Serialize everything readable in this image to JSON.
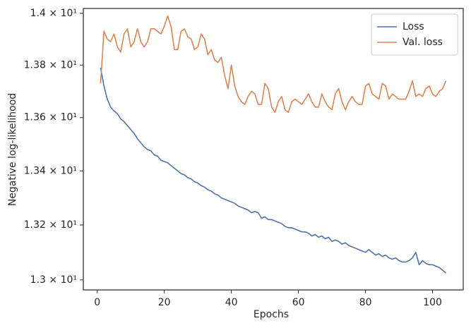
{
  "chart_data": {
    "type": "line",
    "xlabel": "Epochs",
    "ylabel": "Negative log-likelihood",
    "x": [
      1,
      2,
      3,
      4,
      5,
      6,
      7,
      8,
      9,
      10,
      11,
      12,
      13,
      14,
      15,
      16,
      17,
      18,
      19,
      20,
      21,
      22,
      23,
      24,
      25,
      26,
      27,
      28,
      29,
      30,
      31,
      32,
      33,
      34,
      35,
      36,
      37,
      38,
      39,
      40,
      41,
      42,
      43,
      44,
      45,
      46,
      47,
      48,
      49,
      50,
      51,
      52,
      53,
      54,
      55,
      56,
      57,
      58,
      59,
      60,
      61,
      62,
      63,
      64,
      65,
      66,
      67,
      68,
      69,
      70,
      71,
      72,
      73,
      74,
      75,
      76,
      77,
      78,
      79,
      80,
      81,
      82,
      83,
      84,
      85,
      86,
      87,
      88,
      89,
      90,
      91,
      92,
      93,
      94,
      95,
      96,
      97,
      98,
      99,
      100,
      101,
      102,
      103,
      104
    ],
    "series": [
      {
        "name": "Loss",
        "color": "#4c72b0",
        "values": [
          13.79,
          13.72,
          13.67,
          13.64,
          13.625,
          13.615,
          13.595,
          13.585,
          13.57,
          13.555,
          13.54,
          13.52,
          13.505,
          13.49,
          13.48,
          13.475,
          13.46,
          13.455,
          13.44,
          13.435,
          13.43,
          13.42,
          13.41,
          13.4,
          13.39,
          13.385,
          13.375,
          13.37,
          13.36,
          13.355,
          13.345,
          13.34,
          13.33,
          13.325,
          13.315,
          13.31,
          13.3,
          13.295,
          13.29,
          13.285,
          13.28,
          13.27,
          13.265,
          13.26,
          13.255,
          13.245,
          13.25,
          13.245,
          13.225,
          13.23,
          13.22,
          13.22,
          13.215,
          13.21,
          13.205,
          13.195,
          13.19,
          13.19,
          13.185,
          13.18,
          13.175,
          13.175,
          13.17,
          13.16,
          13.165,
          13.155,
          13.16,
          13.15,
          13.155,
          13.14,
          13.145,
          13.14,
          13.13,
          13.135,
          13.125,
          13.12,
          13.115,
          13.11,
          13.105,
          13.1,
          13.11,
          13.1,
          13.09,
          13.095,
          13.085,
          13.09,
          13.08,
          13.075,
          13.08,
          13.07,
          13.065,
          13.065,
          13.07,
          13.08,
          13.1,
          13.055,
          13.07,
          13.06,
          13.055,
          13.055,
          13.05,
          13.045,
          13.035,
          13.025
        ]
      },
      {
        "name": "Val. loss",
        "color": "#dd8452",
        "values": [
          13.73,
          13.93,
          13.9,
          13.89,
          13.92,
          13.87,
          13.85,
          13.92,
          13.94,
          13.87,
          13.89,
          13.94,
          13.89,
          13.87,
          13.89,
          13.94,
          13.94,
          13.93,
          13.92,
          13.95,
          13.99,
          13.95,
          13.86,
          13.86,
          13.93,
          13.94,
          13.91,
          13.9,
          13.86,
          13.87,
          13.92,
          13.9,
          13.84,
          13.86,
          13.82,
          13.81,
          13.83,
          13.76,
          13.71,
          13.8,
          13.72,
          13.68,
          13.66,
          13.65,
          13.68,
          13.7,
          13.69,
          13.65,
          13.65,
          13.73,
          13.71,
          13.64,
          13.62,
          13.66,
          13.68,
          13.63,
          13.62,
          13.66,
          13.67,
          13.66,
          13.65,
          13.67,
          13.69,
          13.66,
          13.64,
          13.64,
          13.69,
          13.66,
          13.64,
          13.63,
          13.69,
          13.71,
          13.66,
          13.63,
          13.66,
          13.68,
          13.66,
          13.65,
          13.65,
          13.72,
          13.73,
          13.69,
          13.68,
          13.67,
          13.73,
          13.72,
          13.67,
          13.69,
          13.68,
          13.67,
          13.67,
          13.67,
          13.7,
          13.74,
          13.68,
          13.69,
          13.68,
          13.71,
          13.72,
          13.69,
          13.68,
          13.7,
          13.71,
          13.74
        ]
      }
    ],
    "xlim": [
      -4.15,
      109.15
    ],
    "xticks": [
      0,
      20,
      40,
      60,
      80,
      100
    ],
    "ylim": [
      12.964,
      14.019
    ],
    "ylog": true,
    "yticks": [
      {
        "value": 13.0,
        "label": "1.3 × 10¹"
      },
      {
        "value": 13.2,
        "label": "1.32 × 10¹"
      },
      {
        "value": 13.4,
        "label": "1.34 × 10¹"
      },
      {
        "value": 13.6,
        "label": "1.36 × 10¹"
      },
      {
        "value": 13.8,
        "label": "1.38 × 10¹"
      },
      {
        "value": 14.0,
        "label": "1.4 × 10¹"
      }
    ],
    "legend": "upper right",
    "grid": false
  }
}
